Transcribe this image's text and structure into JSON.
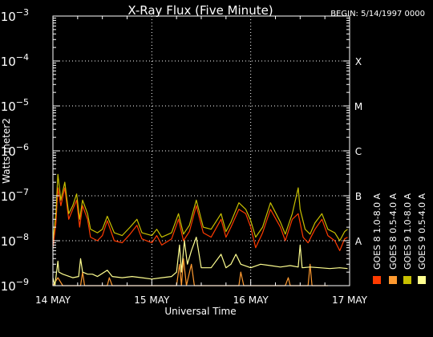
{
  "chart_data": {
    "type": "line",
    "title": "X-Ray Flux (Five Minute)",
    "begin_label": "BEGIN: 5/14/1997 0000",
    "xlabel": "Universal Time",
    "ylabel": "Watts meter2",
    "y_scale": "log",
    "ylim": [
      1e-09,
      0.001
    ],
    "xlim": [
      0,
      3
    ],
    "x_ticks": [
      {
        "value": 0,
        "label": "14 MAY"
      },
      {
        "value": 1,
        "label": "15 MAY"
      },
      {
        "value": 2,
        "label": "16 MAY"
      },
      {
        "value": 3,
        "label": "17 MAY"
      }
    ],
    "y_ticks": [
      {
        "exp": -9,
        "base": "10",
        "sup": "−9"
      },
      {
        "exp": -8,
        "base": "10",
        "sup": "−8"
      },
      {
        "exp": -7,
        "base": "10",
        "sup": "−7"
      },
      {
        "exp": -6,
        "base": "10",
        "sup": "−6"
      },
      {
        "exp": -5,
        "base": "10",
        "sup": "−5"
      },
      {
        "exp": -4,
        "base": "10",
        "sup": "−4"
      },
      {
        "exp": -3,
        "base": "10",
        "sup": "−3"
      }
    ],
    "flare_classes": [
      {
        "exp": -8,
        "label": "A"
      },
      {
        "exp": -7,
        "label": "B"
      },
      {
        "exp": -6,
        "label": "C"
      },
      {
        "exp": -5,
        "label": "M"
      },
      {
        "exp": -4,
        "label": "X"
      }
    ],
    "grid": true,
    "legend_position": "right (vertical)",
    "series": [
      {
        "name": "GOES 8 1.0-8.0 A",
        "color": "#ff3b00",
        "points": [
          [
            0.0,
            7e-09
          ],
          [
            0.03,
            2.4e-08
          ],
          [
            0.05,
            1.5e-07
          ],
          [
            0.08,
            6e-08
          ],
          [
            0.12,
            1.5e-07
          ],
          [
            0.16,
            3e-08
          ],
          [
            0.2,
            5e-08
          ],
          [
            0.24,
            8e-08
          ],
          [
            0.27,
            2e-08
          ],
          [
            0.3,
            6e-08
          ],
          [
            0.35,
            3e-08
          ],
          [
            0.38,
            1.2e-08
          ],
          [
            0.45,
            1e-08
          ],
          [
            0.5,
            1.3e-08
          ],
          [
            0.55,
            2.8e-08
          ],
          [
            0.62,
            1e-08
          ],
          [
            0.7,
            9e-09
          ],
          [
            0.78,
            1.4e-08
          ],
          [
            0.85,
            2.2e-08
          ],
          [
            0.9,
            1.1e-08
          ],
          [
            1.0,
            9e-09
          ],
          [
            1.05,
            1.3e-08
          ],
          [
            1.1,
            8e-09
          ],
          [
            1.2,
            1.1e-08
          ],
          [
            1.27,
            3e-08
          ],
          [
            1.32,
            1e-08
          ],
          [
            1.38,
            1.6e-08
          ],
          [
            1.45,
            6e-08
          ],
          [
            1.52,
            1.5e-08
          ],
          [
            1.6,
            1.2e-08
          ],
          [
            1.7,
            3e-08
          ],
          [
            1.75,
            1.2e-08
          ],
          [
            1.8,
            2e-08
          ],
          [
            1.88,
            5e-08
          ],
          [
            1.95,
            4e-08
          ],
          [
            2.0,
            2e-08
          ],
          [
            2.05,
            7e-09
          ],
          [
            2.12,
            1.5e-08
          ],
          [
            2.2,
            5e-08
          ],
          [
            2.3,
            2e-08
          ],
          [
            2.35,
            1e-08
          ],
          [
            2.42,
            3e-08
          ],
          [
            2.48,
            4e-08
          ],
          [
            2.53,
            1.2e-08
          ],
          [
            2.58,
            9e-09
          ],
          [
            2.65,
            1.8e-08
          ],
          [
            2.72,
            3e-08
          ],
          [
            2.78,
            1.3e-08
          ],
          [
            2.85,
            1e-08
          ],
          [
            2.9,
            6e-09
          ],
          [
            2.95,
            1.1e-08
          ],
          [
            2.98,
            1.2e-08
          ]
        ]
      },
      {
        "name": "GOES 8 0.5-4.0 A",
        "color": "#ff9a30",
        "points": [
          [
            0.0,
            1e-09
          ],
          [
            0.05,
            1.5e-09
          ],
          [
            0.1,
            1e-09
          ],
          [
            0.28,
            1e-09
          ],
          [
            0.3,
            2e-09
          ],
          [
            0.32,
            1e-09
          ],
          [
            0.55,
            1e-09
          ],
          [
            0.57,
            1.5e-09
          ],
          [
            0.6,
            1e-09
          ],
          [
            1.25,
            1e-09
          ],
          [
            1.28,
            3e-09
          ],
          [
            1.3,
            1e-09
          ],
          [
            1.32,
            4e-09
          ],
          [
            1.35,
            1e-09
          ],
          [
            1.4,
            3e-09
          ],
          [
            1.43,
            1e-09
          ],
          [
            1.88,
            1e-09
          ],
          [
            1.9,
            2e-09
          ],
          [
            1.93,
            1e-09
          ],
          [
            2.35,
            1e-09
          ],
          [
            2.38,
            1.5e-09
          ],
          [
            2.4,
            1e-09
          ],
          [
            2.58,
            1e-09
          ],
          [
            2.6,
            3e-09
          ],
          [
            2.62,
            1e-09
          ],
          [
            2.78,
            1e-09
          ]
        ]
      },
      {
        "name": "GOES 9 1.0-8.0 A",
        "color": "#c8c000",
        "points": [
          [
            0.0,
            1e-08
          ],
          [
            0.03,
            4e-08
          ],
          [
            0.05,
            3e-07
          ],
          [
            0.08,
            8e-08
          ],
          [
            0.12,
            2e-07
          ],
          [
            0.16,
            4e-08
          ],
          [
            0.2,
            6e-08
          ],
          [
            0.24,
            1.1e-07
          ],
          [
            0.27,
            3e-08
          ],
          [
            0.3,
            8e-08
          ],
          [
            0.35,
            4e-08
          ],
          [
            0.38,
            1.8e-08
          ],
          [
            0.45,
            1.5e-08
          ],
          [
            0.5,
            1.8e-08
          ],
          [
            0.55,
            3.5e-08
          ],
          [
            0.62,
            1.5e-08
          ],
          [
            0.7,
            1.3e-08
          ],
          [
            0.78,
            2e-08
          ],
          [
            0.85,
            3e-08
          ],
          [
            0.9,
            1.5e-08
          ],
          [
            1.0,
            1.3e-08
          ],
          [
            1.05,
            1.8e-08
          ],
          [
            1.1,
            1.2e-08
          ],
          [
            1.2,
            1.5e-08
          ],
          [
            1.27,
            4e-08
          ],
          [
            1.32,
            1.4e-08
          ],
          [
            1.38,
            2.2e-08
          ],
          [
            1.45,
            8e-08
          ],
          [
            1.52,
            2e-08
          ],
          [
            1.6,
            1.8e-08
          ],
          [
            1.7,
            4e-08
          ],
          [
            1.75,
            1.6e-08
          ],
          [
            1.8,
            2.6e-08
          ],
          [
            1.88,
            7e-08
          ],
          [
            1.95,
            5e-08
          ],
          [
            2.0,
            2.8e-08
          ],
          [
            2.05,
            1.2e-08
          ],
          [
            2.12,
            2e-08
          ],
          [
            2.2,
            7e-08
          ],
          [
            2.3,
            2.6e-08
          ],
          [
            2.35,
            1.4e-08
          ],
          [
            2.42,
            4e-08
          ],
          [
            2.48,
            1.5e-07
          ],
          [
            2.5,
            5e-08
          ],
          [
            2.55,
            1.8e-08
          ],
          [
            2.6,
            1.4e-08
          ],
          [
            2.65,
            2.5e-08
          ],
          [
            2.72,
            4e-08
          ],
          [
            2.78,
            1.8e-08
          ],
          [
            2.85,
            1.5e-08
          ],
          [
            2.9,
            1e-08
          ],
          [
            2.95,
            1.6e-08
          ],
          [
            2.98,
            1.8e-08
          ]
        ]
      },
      {
        "name": "GOES 9 0.5-4.0 A",
        "color": "#ffff90",
        "points": [
          [
            0.0,
            1.5e-09
          ],
          [
            0.02,
            1e-09
          ],
          [
            0.05,
            3.5e-09
          ],
          [
            0.06,
            2e-09
          ],
          [
            0.1,
            1.8e-09
          ],
          [
            0.2,
            1.5e-09
          ],
          [
            0.26,
            1.6e-09
          ],
          [
            0.28,
            4e-09
          ],
          [
            0.3,
            2e-09
          ],
          [
            0.35,
            1.8e-09
          ],
          [
            0.4,
            1.8e-09
          ],
          [
            0.45,
            1.6e-09
          ],
          [
            0.55,
            2.2e-09
          ],
          [
            0.6,
            1.6e-09
          ],
          [
            0.7,
            1.5e-09
          ],
          [
            0.8,
            1.6e-09
          ],
          [
            0.9,
            1.5e-09
          ],
          [
            1.0,
            1.4e-09
          ],
          [
            1.1,
            1.5e-09
          ],
          [
            1.2,
            1.6e-09
          ],
          [
            1.25,
            2e-09
          ],
          [
            1.28,
            8e-09
          ],
          [
            1.3,
            2e-09
          ],
          [
            1.33,
            1e-08
          ],
          [
            1.36,
            3e-09
          ],
          [
            1.4,
            6e-09
          ],
          [
            1.45,
            1.2e-08
          ],
          [
            1.5,
            2.5e-09
          ],
          [
            1.6,
            2.5e-09
          ],
          [
            1.7,
            5e-09
          ],
          [
            1.75,
            2.5e-09
          ],
          [
            1.8,
            3e-09
          ],
          [
            1.85,
            5e-09
          ],
          [
            1.9,
            3e-09
          ],
          [
            2.0,
            2.5e-09
          ],
          [
            2.1,
            3e-09
          ],
          [
            2.2,
            2.8e-09
          ],
          [
            2.3,
            2.6e-09
          ],
          [
            2.4,
            2.8e-09
          ],
          [
            2.48,
            2.6e-09
          ],
          [
            2.5,
            8e-09
          ],
          [
            2.52,
            2.5e-09
          ],
          [
            2.6,
            2.6e-09
          ],
          [
            2.7,
            2.5e-09
          ],
          [
            2.8,
            2.4e-09
          ],
          [
            2.9,
            2.5e-09
          ],
          [
            2.98,
            2.4e-09
          ]
        ]
      }
    ]
  }
}
